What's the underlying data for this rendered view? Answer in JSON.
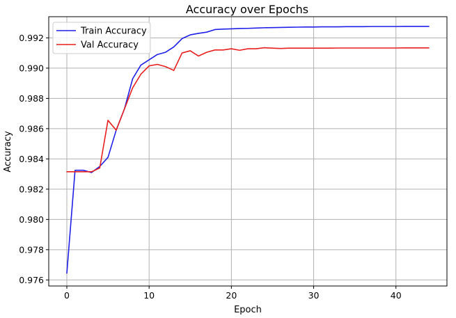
{
  "chart_data": {
    "type": "line",
    "title": "Accuracy over Epochs",
    "xlabel": "Epoch",
    "ylabel": "Accuracy",
    "xlim": [
      -2.2,
      46.2
    ],
    "ylim": [
      0.9756,
      0.9934
    ],
    "xticks": [
      0,
      10,
      20,
      30,
      40
    ],
    "yticks": [
      0.976,
      0.978,
      0.98,
      0.982,
      0.984,
      0.986,
      0.988,
      0.99,
      0.992
    ],
    "grid": true,
    "legend_position": "top-left",
    "x": [
      0,
      1,
      2,
      3,
      4,
      5,
      6,
      7,
      8,
      9,
      10,
      11,
      12,
      13,
      14,
      15,
      16,
      17,
      18,
      19,
      20,
      21,
      22,
      23,
      24,
      25,
      26,
      27,
      28,
      29,
      30,
      31,
      32,
      33,
      34,
      35,
      36,
      37,
      38,
      39,
      40,
      41,
      42,
      43,
      44
    ],
    "series": [
      {
        "name": "Train Accuracy",
        "color": "#1f1fe8",
        "values": [
          0.97645,
          0.98325,
          0.98325,
          0.9831,
          0.9835,
          0.9841,
          0.9859,
          0.9873,
          0.9893,
          0.9902,
          0.99055,
          0.9909,
          0.99105,
          0.9914,
          0.99195,
          0.9922,
          0.9923,
          0.99238,
          0.99255,
          0.99258,
          0.9926,
          0.99262,
          0.99263,
          0.99265,
          0.99267,
          0.99268,
          0.99269,
          0.9927,
          0.99271,
          0.99272,
          0.99272,
          0.99273,
          0.99273,
          0.99273,
          0.99274,
          0.99274,
          0.99274,
          0.99275,
          0.99275,
          0.99275,
          0.99275,
          0.99276,
          0.99276,
          0.99276,
          0.99276
        ]
      },
      {
        "name": "Val Accuracy",
        "color": "#e81f1f",
        "values": [
          0.98315,
          0.98315,
          0.98315,
          0.98315,
          0.9834,
          0.98655,
          0.9859,
          0.9873,
          0.9887,
          0.9896,
          0.99015,
          0.99025,
          0.9901,
          0.98985,
          0.991,
          0.99115,
          0.9908,
          0.99105,
          0.9912,
          0.9912,
          0.99128,
          0.99118,
          0.99128,
          0.99128,
          0.99135,
          0.99132,
          0.9913,
          0.99132,
          0.99132,
          0.99132,
          0.99132,
          0.99132,
          0.99132,
          0.99133,
          0.99133,
          0.99133,
          0.99133,
          0.99133,
          0.99133,
          0.99133,
          0.99133,
          0.99134,
          0.99134,
          0.99134,
          0.99134
        ]
      }
    ]
  }
}
